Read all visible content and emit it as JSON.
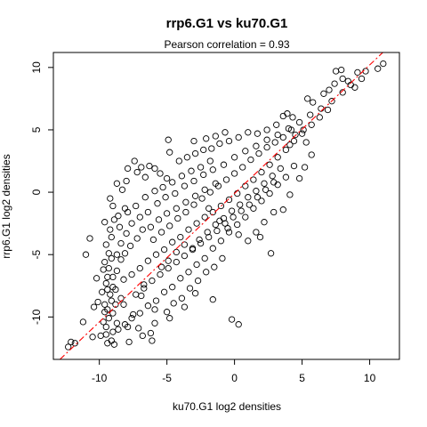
{
  "chart_data": {
    "type": "scatter",
    "title": "rrp6.G1 vs ku70.G1",
    "subtitle": "Pearson correlation =  0.93",
    "xlabel": "ku70.G1 log2 densities",
    "ylabel": "rrp6.G1 log2 densities",
    "xlim": [
      -13.4,
      12.2
    ],
    "ylim": [
      -13.4,
      11.2
    ],
    "x_ticks": [
      -10,
      -5,
      0,
      5,
      10
    ],
    "y_ticks": [
      -10,
      -5,
      0,
      5,
      10
    ],
    "grid": false,
    "marker": "open-circle",
    "point_color": "#000000",
    "fit_line": {
      "intercept": -0.1,
      "slope": 1.03,
      "color": "#ff0000",
      "style": "dashed"
    },
    "series": [
      {
        "points": [
          [
            -9.4,
            -9.4
          ],
          [
            -9.0,
            -7.6
          ],
          [
            -9.5,
            -10.8
          ],
          [
            -9.2,
            -8.2
          ],
          [
            -8.8,
            -9.0
          ],
          [
            -9.4,
            -6.8
          ],
          [
            -9.6,
            -5.6
          ],
          [
            -9.3,
            -4.9
          ],
          [
            -9.5,
            -4.2
          ],
          [
            -9.1,
            -3.6
          ],
          [
            -8.7,
            -5.0
          ],
          [
            -8.4,
            -4.1
          ],
          [
            -8.0,
            -3.3
          ],
          [
            -7.6,
            -2.5
          ],
          [
            -7.0,
            -2.0
          ],
          [
            -6.4,
            -1.6
          ],
          [
            -5.7,
            -0.9
          ],
          [
            -5.1,
            -0.4
          ],
          [
            -4.4,
            -0.1
          ],
          [
            -3.7,
            0.5
          ],
          [
            -3.0,
            0.9
          ],
          [
            -2.3,
            1.4
          ],
          [
            -1.6,
            1.8
          ],
          [
            -0.8,
            2.2
          ],
          [
            0.0,
            2.8
          ],
          [
            0.8,
            3.3
          ],
          [
            1.6,
            3.7
          ],
          [
            2.4,
            4.2
          ],
          [
            3.2,
            4.6
          ],
          [
            4.0,
            5.1
          ],
          [
            4.8,
            5.6
          ],
          [
            5.6,
            6.2
          ],
          [
            6.4,
            6.7
          ],
          [
            7.2,
            7.3
          ],
          [
            8.0,
            8.0
          ],
          [
            8.6,
            8.6
          ],
          [
            -8.8,
            -7.8
          ],
          [
            -8.2,
            -7.0
          ],
          [
            -7.6,
            -6.6
          ],
          [
            -7.0,
            -6.1
          ],
          [
            -6.4,
            -5.5
          ],
          [
            -5.8,
            -5.0
          ],
          [
            -5.2,
            -4.6
          ],
          [
            -4.6,
            -4.0
          ],
          [
            -4.0,
            -3.6
          ],
          [
            -3.4,
            -3.0
          ],
          [
            -2.8,
            -2.5
          ],
          [
            -2.2,
            -2.0
          ],
          [
            -1.6,
            -1.6
          ],
          [
            -1.0,
            -1.1
          ],
          [
            -0.4,
            -0.6
          ],
          [
            0.2,
            -0.1
          ],
          [
            0.8,
            0.5
          ],
          [
            1.4,
            1.0
          ],
          [
            2.0,
            1.6
          ],
          [
            2.6,
            2.2
          ],
          [
            3.2,
            2.8
          ],
          [
            3.8,
            3.4
          ],
          [
            4.4,
            4.1
          ],
          [
            5.0,
            4.7
          ],
          [
            -9.0,
            -11.2
          ],
          [
            -8.6,
            -11.0
          ],
          [
            -8.1,
            -10.6
          ],
          [
            -7.6,
            -10.1
          ],
          [
            -7.0,
            -9.7
          ],
          [
            -6.4,
            -9.1
          ],
          [
            -5.8,
            -8.7
          ],
          [
            -5.2,
            -8.0
          ],
          [
            -4.6,
            -7.6
          ],
          [
            -4.0,
            -6.9
          ],
          [
            -3.4,
            -6.4
          ],
          [
            -2.8,
            -5.8
          ],
          [
            -2.2,
            -5.3
          ],
          [
            -1.6,
            -4.5
          ],
          [
            -1.0,
            -3.9
          ],
          [
            -0.4,
            -3.2
          ],
          [
            0.2,
            -2.6
          ],
          [
            0.8,
            -2.0
          ],
          [
            1.4,
            -1.3
          ],
          [
            2.0,
            -0.7
          ],
          [
            2.6,
            -0.1
          ],
          [
            3.2,
            0.6
          ],
          [
            3.8,
            1.2
          ],
          [
            4.4,
            2.1
          ],
          [
            -9.4,
            -12.1
          ],
          [
            -9.5,
            -11.4
          ],
          [
            -8.9,
            -12.2
          ],
          [
            -7.8,
            -12.0
          ],
          [
            -6.2,
            -11.3
          ],
          [
            -5.9,
            -10.5
          ],
          [
            -7.1,
            -10.9
          ],
          [
            -6.7,
            -7.4
          ],
          [
            -5.4,
            -6.0
          ],
          [
            -4.9,
            -5.5
          ],
          [
            -4.3,
            -4.8
          ],
          [
            -3.7,
            -4.2
          ],
          [
            -8.1,
            -4.9
          ],
          [
            -7.7,
            -4.3
          ],
          [
            -7.2,
            -3.7
          ],
          [
            -6.8,
            -3.0
          ],
          [
            -6.2,
            -2.8
          ],
          [
            -5.6,
            -2.2
          ],
          [
            -5.0,
            -1.7
          ],
          [
            -4.3,
            -1.3
          ],
          [
            -3.6,
            -0.8
          ],
          [
            -2.9,
            -0.3
          ],
          [
            -2.2,
            0.2
          ],
          [
            -1.4,
            0.7
          ],
          [
            -8.5,
            -2.8
          ],
          [
            -8.9,
            -2.2
          ],
          [
            -7.9,
            -1.6
          ],
          [
            -7.3,
            -1.1
          ],
          [
            -6.6,
            -0.4
          ],
          [
            -5.9,
            0.1
          ],
          [
            -5.3,
            0.4
          ],
          [
            -4.6,
            0.8
          ],
          [
            -3.9,
            1.3
          ],
          [
            -3.2,
            1.7
          ],
          [
            -2.5,
            2.0
          ],
          [
            -1.8,
            2.5
          ],
          [
            -9.2,
            -3.0
          ],
          [
            -9.6,
            -2.4
          ],
          [
            -8.6,
            -1.9
          ],
          [
            -8.1,
            -1.3
          ],
          [
            -9.7,
            -6.2
          ],
          [
            -9.5,
            -7.3
          ],
          [
            -9.8,
            -8.0
          ],
          [
            -9.6,
            -9.0
          ],
          [
            -9.3,
            -10.1
          ],
          [
            -9.7,
            -10.4
          ],
          [
            -9.0,
            -9.7
          ],
          [
            -8.4,
            -8.5
          ],
          [
            -10.1,
            -8.8
          ],
          [
            -11.0,
            -5.0
          ],
          [
            -11.2,
            -10.4
          ],
          [
            -12.1,
            -12.0
          ],
          [
            -12.3,
            -12.4
          ],
          [
            -11.8,
            -12.1
          ],
          [
            -10.7,
            -3.7
          ],
          [
            -10.2,
            -6.9
          ],
          [
            -10.4,
            -9.2
          ],
          [
            -9.9,
            -11.5
          ],
          [
            -10.5,
            -11.6
          ],
          [
            -9.1,
            -11.9
          ],
          [
            -8.7,
            -10.5
          ],
          [
            -7.9,
            -10.8
          ],
          [
            -6.8,
            -11.5
          ],
          [
            -6.1,
            -11.9
          ],
          [
            -5.0,
            -9.6
          ],
          [
            -4.5,
            -8.9
          ],
          [
            -3.9,
            -8.5
          ],
          [
            -3.3,
            -7.7
          ],
          [
            -2.7,
            -7.1
          ],
          [
            -2.1,
            -6.4
          ],
          [
            -1.5,
            -6.0
          ],
          [
            -0.9,
            -5.3
          ],
          [
            -4.9,
            4.2
          ],
          [
            -4.8,
            3.2
          ],
          [
            -7.4,
            2.5
          ],
          [
            -7.9,
            1.9
          ],
          [
            -8.7,
            0.7
          ],
          [
            -8.3,
            0.2
          ],
          [
            -9.2,
            -0.5
          ],
          [
            -9.0,
            -1.1
          ],
          [
            -8.0,
            0.9
          ],
          [
            -7.2,
            1.6
          ],
          [
            -6.6,
            1.2
          ],
          [
            -5.9,
            1.9
          ],
          [
            -4.1,
            2.5
          ],
          [
            -3.5,
            2.8
          ],
          [
            -2.9,
            3.1
          ],
          [
            -2.3,
            3.4
          ],
          [
            -1.7,
            3.5
          ],
          [
            -1.1,
            3.9
          ],
          [
            -0.4,
            4.1
          ],
          [
            0.3,
            4.4
          ],
          [
            1.0,
            4.8
          ],
          [
            1.7,
            4.7
          ],
          [
            2.4,
            5.0
          ],
          [
            3.1,
            5.4
          ],
          [
            3.6,
            6.1
          ],
          [
            3.9,
            6.3
          ],
          [
            4.3,
            6.0
          ],
          [
            5.4,
            7.5
          ],
          [
            5.8,
            7.2
          ],
          [
            6.6,
            7.9
          ],
          [
            7.0,
            8.2
          ],
          [
            7.4,
            8.7
          ],
          [
            8.0,
            9.1
          ],
          [
            8.4,
            8.9
          ],
          [
            9.1,
            9.6
          ],
          [
            9.7,
            9.7
          ],
          [
            7.5,
            9.7
          ],
          [
            7.9,
            9.8
          ],
          [
            11.0,
            10.3
          ],
          [
            10.6,
            9.9
          ],
          [
            9.4,
            9.1
          ],
          [
            8.9,
            8.4
          ],
          [
            6.9,
            6.6
          ],
          [
            6.3,
            6.0
          ],
          [
            5.7,
            5.4
          ],
          [
            5.1,
            5.0
          ],
          [
            4.5,
            4.6
          ],
          [
            4.1,
            3.8
          ],
          [
            -5.0,
            1.1
          ],
          [
            -5.5,
            1.5
          ],
          [
            -6.3,
            2.1
          ],
          [
            -6.9,
            2.0
          ],
          [
            -3.0,
            4.1
          ],
          [
            -2.1,
            4.3
          ],
          [
            -1.4,
            4.5
          ],
          [
            -0.7,
            4.8
          ],
          [
            -1.9,
            -1.3
          ],
          [
            -1.1,
            -2.3
          ],
          [
            -0.5,
            -2.9
          ],
          [
            0.3,
            -3.4
          ],
          [
            1.0,
            -3.9
          ],
          [
            1.6,
            -3.2
          ],
          [
            2.2,
            -2.4
          ],
          [
            2.9,
            -1.6
          ],
          [
            3.6,
            -1.4
          ],
          [
            4.1,
            -0.2
          ],
          [
            4.8,
            1.1
          ],
          [
            5.2,
            2.0
          ],
          [
            5.7,
            3.0
          ],
          [
            5.3,
            4.0
          ],
          [
            2.7,
            -4.9
          ],
          [
            1.9,
            -3.6
          ],
          [
            -0.2,
            -10.2
          ],
          [
            0.3,
            -10.6
          ],
          [
            -1.6,
            -8.6
          ],
          [
            -2.9,
            -8.1
          ],
          [
            -3.7,
            -9.2
          ],
          [
            -4.8,
            -10.1
          ],
          [
            -5.9,
            -9.4
          ],
          [
            -6.9,
            -8.3
          ],
          [
            -7.5,
            -9.8
          ],
          [
            -8.2,
            -9.0
          ],
          [
            -8.7,
            -6.3
          ],
          [
            -8.4,
            -5.4
          ],
          [
            -9.1,
            -5.3
          ],
          [
            -9.3,
            -6.1
          ],
          [
            -9.0,
            -6.8
          ],
          [
            -9.4,
            -7.8
          ],
          [
            -9.1,
            -8.7
          ],
          [
            -9.6,
            -9.6
          ],
          [
            -3.1,
            -4.5
          ],
          [
            -2.6,
            -3.8
          ],
          [
            -2.0,
            -3.2
          ],
          [
            -1.4,
            -2.6
          ],
          [
            -0.8,
            -2.1
          ],
          [
            -0.2,
            -1.5
          ],
          [
            0.4,
            -1.0
          ],
          [
            1.0,
            -0.4
          ],
          [
            1.6,
            0.1
          ],
          [
            2.2,
            0.7
          ],
          [
            2.8,
            1.3
          ],
          [
            3.4,
            1.9
          ],
          [
            -6.0,
            -3.8
          ],
          [
            -5.4,
            -3.2
          ],
          [
            -4.8,
            -2.7
          ],
          [
            -4.2,
            -2.1
          ],
          [
            -3.6,
            -1.6
          ],
          [
            -3.0,
            -1.0
          ],
          [
            -2.4,
            -0.5
          ],
          [
            -1.8,
            0.0
          ],
          [
            -1.2,
            0.5
          ],
          [
            -0.6,
            1.0
          ],
          [
            0.0,
            1.5
          ],
          [
            0.6,
            2.0
          ],
          [
            1.2,
            2.6
          ],
          [
            1.8,
            3.1
          ],
          [
            2.4,
            3.6
          ],
          [
            3.0,
            4.0
          ],
          [
            3.6,
            4.4
          ],
          [
            4.2,
            5.0
          ],
          [
            -7.3,
            -8.2
          ],
          [
            -6.7,
            -7.7
          ],
          [
            -6.1,
            -7.1
          ],
          [
            -5.5,
            -6.6
          ],
          [
            -4.9,
            -6.1
          ],
          [
            -4.3,
            -5.6
          ],
          [
            -3.7,
            -5.1
          ],
          [
            -3.1,
            -4.6
          ],
          [
            -2.5,
            -4.1
          ],
          [
            -1.9,
            -3.6
          ],
          [
            -1.3,
            -3.1
          ],
          [
            -0.7,
            -2.5
          ],
          [
            -0.1,
            -2.0
          ],
          [
            0.5,
            -1.5
          ],
          [
            1.1,
            -1.0
          ],
          [
            1.7,
            -0.4
          ],
          [
            2.3,
            0.2
          ],
          [
            2.9,
            0.8
          ]
        ]
      }
    ]
  }
}
